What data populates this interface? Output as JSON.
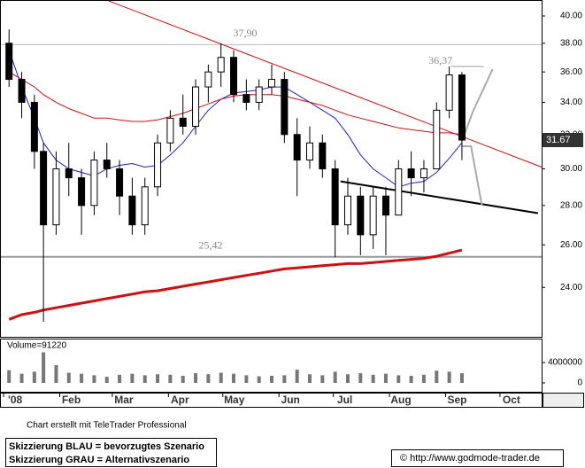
{
  "chart_data": {
    "type": "candlestick",
    "x": [
      3,
      10,
      17,
      22,
      29,
      36,
      43,
      50,
      57,
      64,
      71,
      78,
      85,
      92,
      99,
      106,
      113,
      120,
      127,
      134,
      141,
      148,
      155,
      162,
      169,
      176,
      183,
      190,
      197,
      204,
      211,
      218,
      225,
      232,
      239,
      246,
      253
    ],
    "open": [
      38,
      35.5,
      34,
      31,
      27,
      30,
      29.5,
      28,
      30.5,
      30,
      28.5,
      27,
      29,
      31.5,
      33,
      32.5,
      35,
      36,
      37,
      34.5,
      34,
      35,
      35.5,
      32,
      30.5,
      31.5,
      30,
      27,
      28.5,
      26.5,
      28.5,
      27.5,
      30,
      29.5,
      30,
      33.5,
      35.8
    ],
    "high": [
      39,
      36,
      34.5,
      31.5,
      31,
      31.5,
      30,
      31,
      31.5,
      30.5,
      29.5,
      29.5,
      32,
      33.5,
      34.5,
      35.5,
      36.5,
      38,
      37.5,
      35.5,
      35.5,
      36.5,
      36,
      33,
      32.5,
      32,
      30.5,
      29.5,
      29,
      29,
      29,
      30.5,
      31,
      30.5,
      34,
      36.37,
      36
    ],
    "low": [
      35,
      33,
      30,
      22.5,
      26.5,
      28.5,
      26.5,
      27.5,
      29.5,
      27.5,
      26.5,
      26.5,
      28.5,
      31,
      32,
      32,
      34,
      35,
      34,
      33.5,
      33.5,
      34.5,
      31.5,
      28.5,
      30,
      29.5,
      25.4,
      26.5,
      25.5,
      25.8,
      25.5,
      27.5,
      28.5,
      28.7,
      30,
      33,
      30.5
    ],
    "close": [
      35.5,
      34,
      31,
      27,
      30,
      29.5,
      28,
      30.5,
      30,
      28.5,
      27,
      29,
      31.5,
      33,
      32.5,
      35,
      36,
      37,
      34.5,
      34,
      35,
      35.5,
      32,
      30.5,
      31.5,
      30,
      27,
      28.5,
      26.5,
      28.5,
      27.5,
      30,
      29.5,
      30,
      33.5,
      35.8,
      31.67
    ],
    "series": [
      {
        "color": "#1f1fd0",
        "width": 1,
        "values": [
          37.5,
          35,
          33,
          31.5,
          30.5,
          30,
          29.8,
          29.6,
          30,
          30.2,
          30.3,
          30.1,
          30.2,
          30.8,
          31.5,
          32.5,
          33.5,
          34.2,
          34.6,
          34.7,
          34.8,
          35,
          35,
          34.5,
          34,
          33.5,
          33,
          32,
          30.8,
          30,
          29.5,
          29,
          29.2,
          29.3,
          29.8,
          30.6,
          31.5
        ]
      },
      {
        "color": "#d01010",
        "width": 1,
        "values": [
          36,
          35.5,
          35,
          34.5,
          34,
          33.6,
          33.3,
          33,
          33,
          32.9,
          32.8,
          32.8,
          32.9,
          33.1,
          33.3,
          33.6,
          33.9,
          34.2,
          34.4,
          34.5,
          34.5,
          34.5,
          34.4,
          34.2,
          34,
          33.8,
          33.5,
          33.2,
          33,
          32.8,
          32.6,
          32.4,
          32.3,
          32.2,
          32.1,
          32.1,
          32
        ]
      },
      {
        "color": "#d01010",
        "width": 3,
        "values": [
          22.6,
          22.8,
          22.9,
          23.0,
          23.1,
          23.2,
          23.3,
          23.4,
          23.5,
          23.6,
          23.7,
          23.8,
          23.85,
          23.95,
          24.05,
          24.15,
          24.25,
          24.35,
          24.45,
          24.55,
          24.65,
          24.75,
          24.85,
          24.9,
          24.95,
          25.0,
          25.05,
          25.1,
          25.1,
          25.15,
          25.2,
          25.25,
          25.3,
          25.35,
          25.45,
          25.6,
          25.75
        ]
      }
    ],
    "trendlines": [
      {
        "color": "#d01010",
        "x": [
          58,
          297
        ],
        "y": [
          41.15,
          30.1
        ]
      },
      {
        "color": "#000000",
        "x": [
          186,
          295
        ],
        "y": [
          29.3,
          27.6
        ]
      }
    ],
    "scenarios": [
      {
        "color": "#aaaaaa",
        "x": [
          253,
          259,
          270
        ],
        "y": [
          31.6,
          33.4,
          36.2
        ]
      },
      {
        "color": "#aaaaaa",
        "x": [
          253,
          258,
          264
        ],
        "y": [
          31.3,
          31.3,
          28
        ]
      }
    ],
    "levels": [
      {
        "value": 37.9,
        "label": "37,90"
      },
      {
        "value": 25.42,
        "label": "25,42"
      }
    ],
    "high_mark": {
      "value": 36.37,
      "label": "36,37",
      "x": [
        247,
        265
      ]
    },
    "last_price": {
      "value": 31.67,
      "label": "31.67"
    },
    "log_scale": true,
    "ylim": [
      21.87,
      41.15
    ],
    "yticks": [
      {
        "value": 24,
        "label": "24.00"
      },
      {
        "value": 26,
        "label": "26.00"
      },
      {
        "value": 28,
        "label": "28.00"
      },
      {
        "value": 30,
        "label": "30.00"
      },
      {
        "value": 32,
        "label": "32.00"
      },
      {
        "value": 34,
        "label": "34.00"
      },
      {
        "value": 36,
        "label": "36.00"
      },
      {
        "value": 38,
        "label": "38.00"
      },
      {
        "value": 40,
        "label": "40.00"
      }
    ],
    "xlim": [
      -1.5,
      297
    ],
    "xticks": [
      {
        "value": 0,
        "label": "'08"
      },
      {
        "value": 31,
        "label": "Feb"
      },
      {
        "value": 60,
        "label": "Mar"
      },
      {
        "value": 91,
        "label": "Apr"
      },
      {
        "value": 121,
        "label": "May"
      },
      {
        "value": 152,
        "label": "Jun"
      },
      {
        "value": 182,
        "label": "Jul"
      },
      {
        "value": 213,
        "label": "Aug"
      },
      {
        "value": 244,
        "label": "Sep"
      },
      {
        "value": 274,
        "label": "Oct"
      }
    ],
    "volume": {
      "label": "Volume=91220",
      "values": [
        2500000,
        1800000,
        2200000,
        6000000,
        3500000,
        2000000,
        1800000,
        1500000,
        1200000,
        1600000,
        1800000,
        1500000,
        1700000,
        1600000,
        1400000,
        1900000,
        1700000,
        2000000,
        1800000,
        1500000,
        1300000,
        1400000,
        1500000,
        2600000,
        1700000,
        1500000,
        2200000,
        1700000,
        1900000,
        1600000,
        1800000,
        1500000,
        1400000,
        1600000,
        2400000,
        2200000,
        1900000
      ],
      "ylim": [
        0,
        8000000
      ],
      "yticks": [
        0,
        4000000
      ]
    },
    "credit": "Chart erstellt mit TeleTrader Professional",
    "legend_lines": [
      "Skizzierung BLAU = bevorzugtes Szenario",
      "Skizzierung GRAU = Alternativszenario"
    ],
    "copyright": "© http://www.godmode-trader.de"
  }
}
